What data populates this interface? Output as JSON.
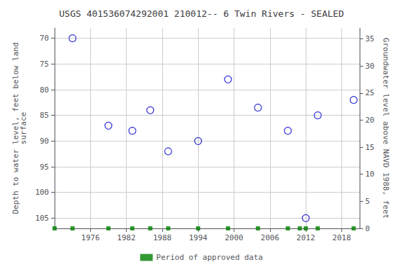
{
  "chart_data": {
    "type": "scatter",
    "title": "USGS 401536074292001 210012-- 6 Twin Rivers - SEALED",
    "ylabel": "Depth to water level, feet below land\nsurface",
    "y2label": "Groundwater level above NAVD 1988, feet",
    "series": [
      {
        "x": [
          1973,
          1979,
          1983,
          1986,
          1989,
          1994,
          1999,
          2004,
          2009,
          2012,
          2014,
          2020
        ],
        "values": [
          70,
          87,
          88,
          84,
          92,
          90,
          78,
          83.5,
          88,
          105,
          85,
          82
        ],
        "color": "#0000cc",
        "marker": "circle"
      },
      {
        "name": "Period of approved data",
        "x": [
          1970,
          1973,
          1979,
          1983,
          1986,
          1989,
          1994,
          1999,
          2004,
          2009,
          2011,
          2012,
          2014,
          2020
        ],
        "values": [
          107,
          107,
          107,
          107,
          107,
          107,
          107,
          107,
          107,
          107,
          107,
          107,
          107,
          107
        ],
        "color": "#008000",
        "marker": "square"
      }
    ],
    "xlim": [
      1970,
      2021
    ],
    "xticks": [
      1976,
      1982,
      1988,
      1994,
      2000,
      2006,
      2012,
      2018
    ],
    "ylim": [
      107,
      68
    ],
    "yticks": [
      70,
      75,
      80,
      85,
      90,
      95,
      100,
      105
    ],
    "y2lim": [
      0,
      37
    ],
    "y2ticks": [
      0,
      5,
      10,
      15,
      20,
      25,
      30,
      35
    ],
    "grid": true,
    "legend": "bottom"
  }
}
